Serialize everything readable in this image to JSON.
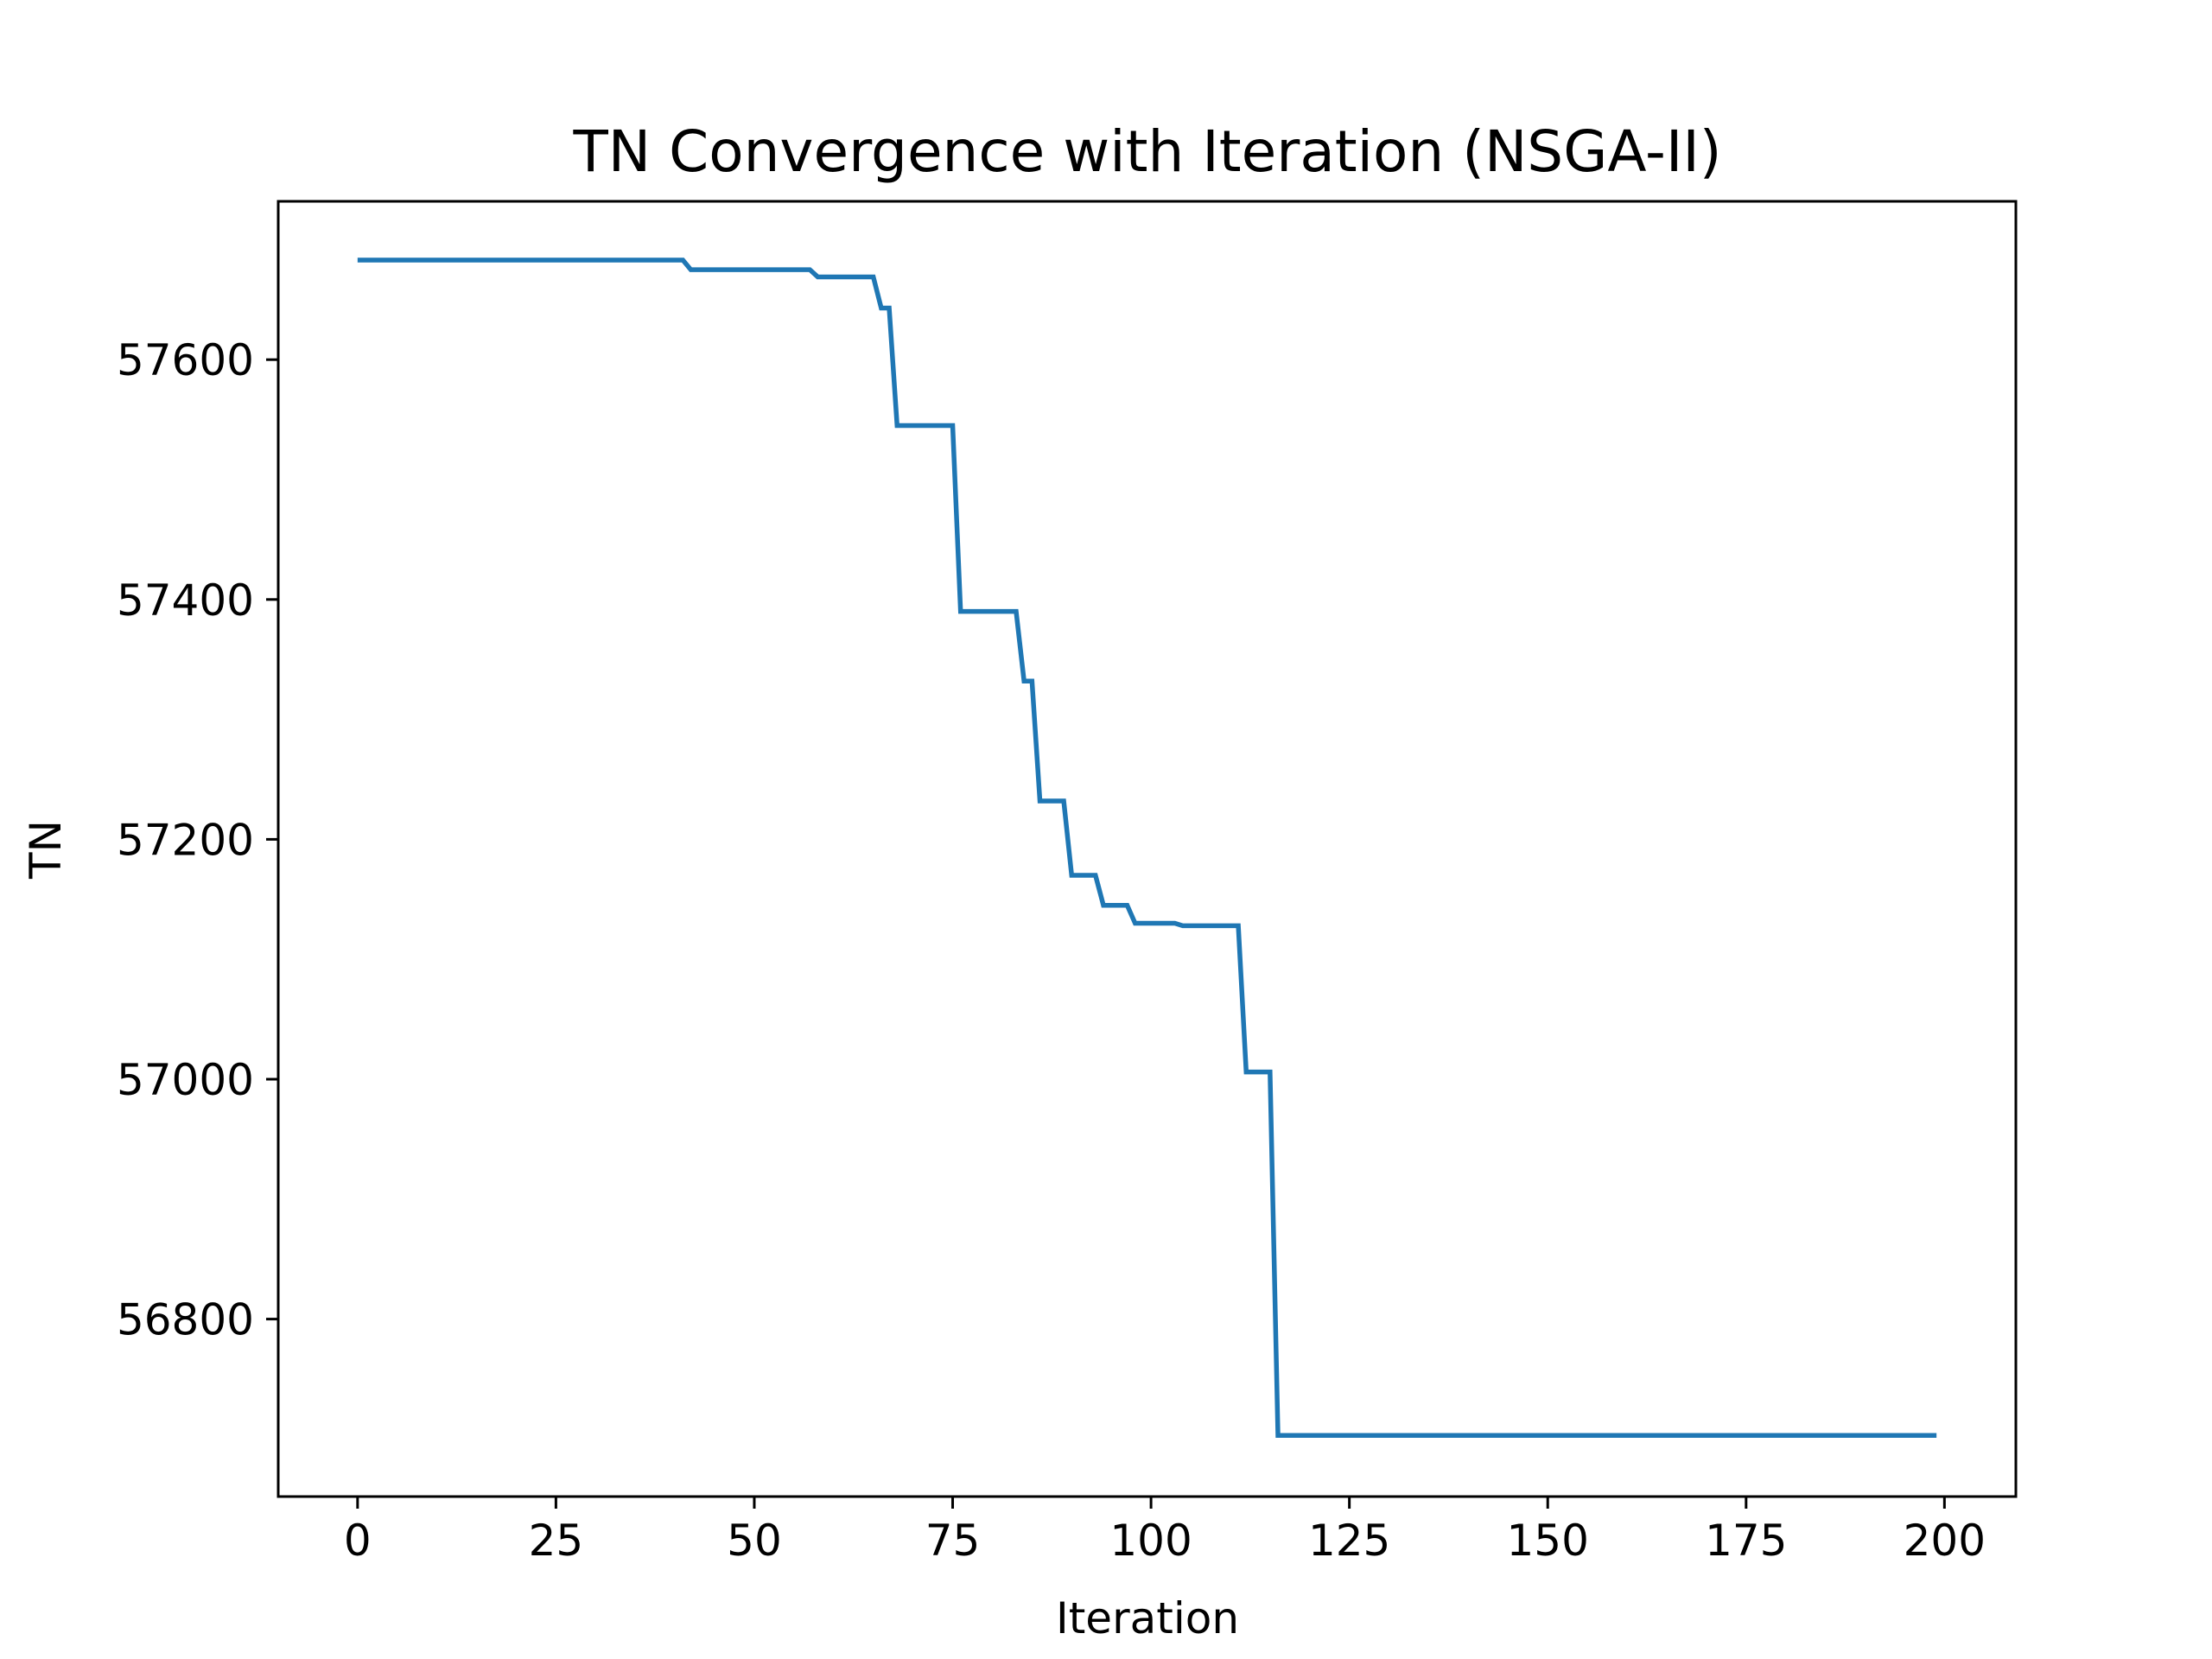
{
  "chart_data": {
    "type": "line",
    "title": "TN Convergence with Iteration (NSGA-II)",
    "xlabel": "Iteration",
    "ylabel": "TN",
    "xlim": [
      -10,
      209
    ],
    "ylim": [
      56652,
      57732
    ],
    "x_ticks": [
      0,
      25,
      50,
      75,
      100,
      125,
      150,
      175,
      200
    ],
    "y_ticks": [
      56800,
      57000,
      57200,
      57400,
      57600
    ],
    "grid": false,
    "legend": "none",
    "series": [
      {
        "color": "#1f77b4",
        "points": [
          [
            0,
            57683
          ],
          [
            41,
            57683
          ],
          [
            42,
            57675
          ],
          [
            57,
            57675
          ],
          [
            58,
            57669
          ],
          [
            65,
            57669
          ],
          [
            66,
            57643
          ],
          [
            67,
            57643
          ],
          [
            68,
            57545
          ],
          [
            75,
            57545
          ],
          [
            76,
            57390
          ],
          [
            83,
            57390
          ],
          [
            84,
            57332
          ],
          [
            85,
            57332
          ],
          [
            86,
            57232
          ],
          [
            89,
            57232
          ],
          [
            90,
            57170
          ],
          [
            93,
            57170
          ],
          [
            94,
            57145
          ],
          [
            97,
            57145
          ],
          [
            98,
            57130
          ],
          [
            103,
            57130
          ],
          [
            104,
            57128
          ],
          [
            111,
            57128
          ],
          [
            112,
            57006
          ],
          [
            115,
            57006
          ],
          [
            116,
            56703
          ],
          [
            199,
            56703
          ]
        ]
      }
    ]
  }
}
